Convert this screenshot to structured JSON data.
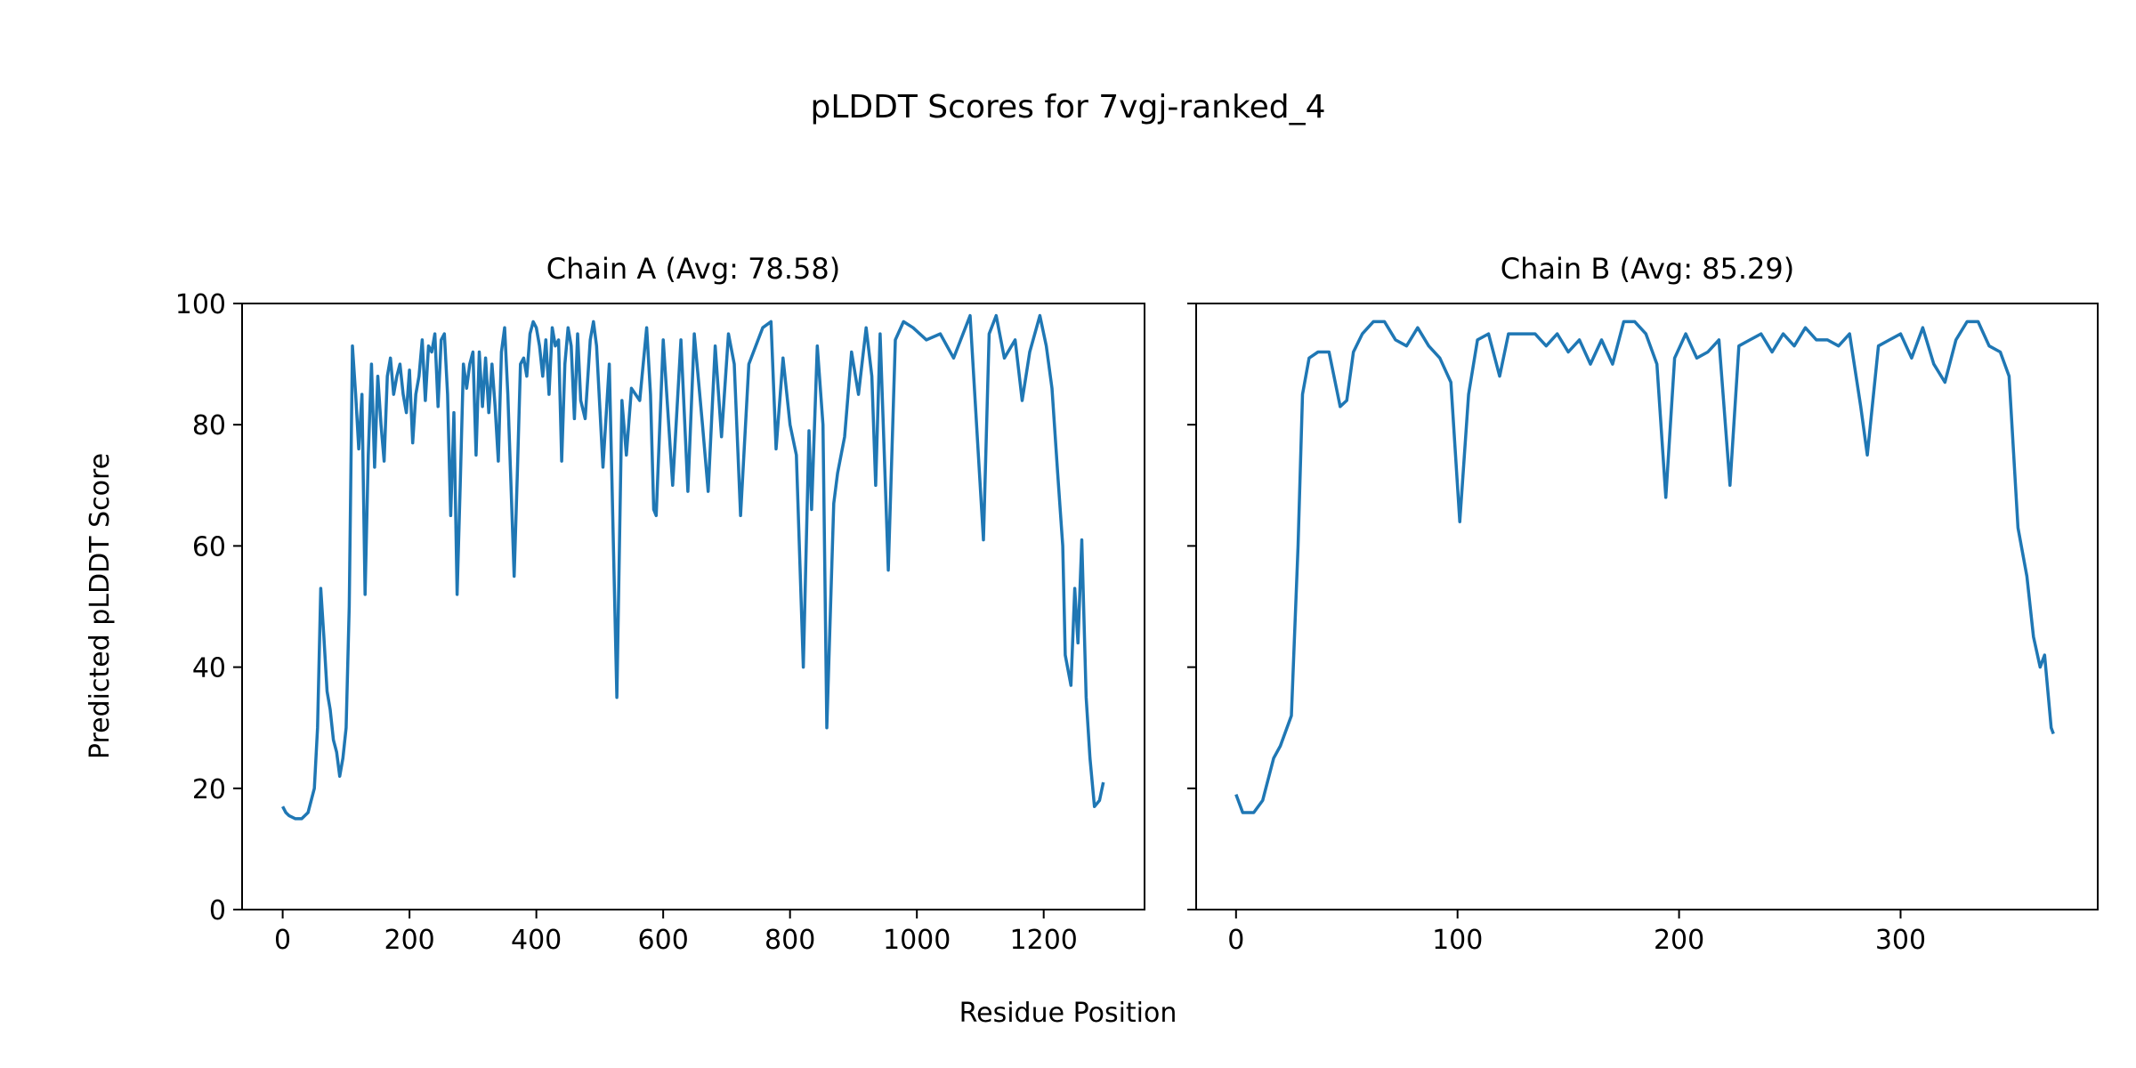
{
  "chart_data": [
    {
      "type": "line",
      "figure_title": "pLDDT Scores for 7vgj-ranked_4",
      "title": "Chain A (Avg: 78.58)",
      "xlabel": "Residue Position",
      "ylabel": "Predicted pLDDT Score",
      "xlim": [
        -64,
        1359
      ],
      "ylim": [
        0,
        100
      ],
      "xticks": [
        0,
        200,
        400,
        600,
        800,
        1000,
        1200
      ],
      "yticks": [
        0,
        20,
        40,
        60,
        80,
        100
      ],
      "grid": false,
      "color": "#1f77b4",
      "x": [
        0,
        5,
        10,
        20,
        30,
        40,
        50,
        55,
        60,
        65,
        70,
        75,
        80,
        85,
        90,
        95,
        100,
        105,
        110,
        115,
        120,
        125,
        130,
        135,
        140,
        145,
        150,
        155,
        160,
        165,
        170,
        175,
        180,
        185,
        190,
        195,
        200,
        205,
        210,
        215,
        220,
        225,
        230,
        235,
        240,
        245,
        250,
        255,
        260,
        265,
        270,
        275,
        280,
        285,
        290,
        295,
        300,
        305,
        310,
        315,
        320,
        325,
        330,
        335,
        340,
        345,
        350,
        355,
        365,
        370,
        375,
        380,
        385,
        390,
        395,
        400,
        405,
        410,
        415,
        420,
        425,
        430,
        435,
        440,
        445,
        450,
        455,
        460,
        465,
        470,
        477,
        485,
        490,
        495,
        505,
        515,
        527,
        535,
        542,
        550,
        563,
        574,
        580,
        585,
        589,
        600,
        615,
        628,
        639,
        649,
        662,
        671,
        682,
        692,
        703,
        712,
        722,
        735,
        757,
        770,
        778,
        789,
        800,
        810,
        821,
        830,
        834,
        843,
        852,
        858,
        869,
        875,
        886,
        897,
        908,
        920,
        929,
        935,
        942,
        955,
        966,
        979,
        994,
        1015,
        1037,
        1058,
        1084,
        1097,
        1105,
        1114,
        1125,
        1138,
        1155,
        1166,
        1178,
        1194,
        1204,
        1213,
        1222,
        1230,
        1234,
        1243,
        1249,
        1254,
        1260,
        1267,
        1273,
        1280,
        1288,
        1294
      ],
      "y": [
        17,
        16,
        15.5,
        15,
        15,
        16,
        20,
        30,
        53,
        45,
        36,
        33,
        28,
        26,
        22,
        25,
        30,
        50,
        93,
        85,
        76,
        85,
        52,
        75,
        90,
        73,
        88,
        80,
        74,
        88,
        91,
        85,
        88,
        90,
        85,
        82,
        89,
        77,
        85,
        88,
        94,
        84,
        93,
        92,
        95,
        83,
        94,
        95,
        85,
        65,
        82,
        52,
        70,
        90,
        86,
        90,
        92,
        75,
        92,
        83,
        91,
        82,
        90,
        83,
        74,
        92,
        96,
        85,
        55,
        72,
        90,
        91,
        88,
        95,
        97,
        96,
        93,
        88,
        94,
        85,
        96,
        93,
        94,
        74,
        90,
        96,
        93,
        81,
        95,
        84,
        81,
        94,
        97,
        93,
        73,
        90,
        35,
        84,
        75,
        86,
        84,
        96,
        85,
        66,
        65,
        94,
        70,
        94,
        69,
        95,
        80,
        69,
        93,
        78,
        95,
        90,
        65,
        90,
        96,
        97,
        76,
        91,
        80,
        75,
        40,
        79,
        66,
        93,
        80,
        30,
        67,
        72,
        78,
        92,
        85,
        96,
        88,
        70,
        95,
        56,
        94,
        97,
        96,
        94,
        95,
        91,
        98,
        75,
        61,
        95,
        98,
        91,
        94,
        84,
        92,
        98,
        93,
        86,
        72,
        60,
        42,
        37,
        53,
        44,
        61,
        35,
        25,
        17,
        18,
        21
      ]
    },
    {
      "type": "line",
      "title": "Chain B (Avg: 85.29)",
      "xlim": [
        -18,
        389
      ],
      "ylim": [
        0,
        100
      ],
      "xticks": [
        0,
        100,
        200,
        300
      ],
      "yticks": [
        0,
        20,
        40,
        60,
        80,
        100
      ],
      "grid": false,
      "color": "#1f77b4",
      "x": [
        0,
        3,
        8,
        12,
        17,
        20,
        25,
        28,
        30,
        33,
        37,
        42,
        47,
        50,
        53,
        57,
        62,
        67,
        72,
        77,
        82,
        87,
        92,
        97,
        101,
        105,
        109,
        114,
        119,
        123,
        130,
        135,
        140,
        145,
        150,
        155,
        160,
        165,
        170,
        175,
        180,
        185,
        190,
        194,
        198,
        203,
        208,
        213,
        218,
        223,
        227,
        232,
        237,
        242,
        247,
        252,
        257,
        262,
        267,
        272,
        277,
        282,
        285,
        290,
        295,
        300,
        305,
        310,
        315,
        320,
        325,
        330,
        335,
        340,
        345,
        349,
        353,
        357,
        360,
        363,
        365,
        368,
        369
      ],
      "y": [
        19,
        16,
        16,
        18,
        25,
        27,
        32,
        60,
        85,
        91,
        92,
        92,
        83,
        84,
        92,
        95,
        97,
        97,
        94,
        93,
        96,
        93,
        91,
        87,
        64,
        85,
        94,
        95,
        88,
        95,
        95,
        95,
        93,
        95,
        92,
        94,
        90,
        94,
        90,
        97,
        97,
        95,
        90,
        68,
        91,
        95,
        91,
        92,
        94,
        70,
        93,
        94,
        95,
        92,
        95,
        93,
        96,
        94,
        94,
        93,
        95,
        83,
        75,
        93,
        94,
        95,
        91,
        96,
        90,
        87,
        94,
        97,
        97,
        93,
        92,
        88,
        63,
        55,
        45,
        40,
        42,
        30,
        29
      ]
    }
  ]
}
